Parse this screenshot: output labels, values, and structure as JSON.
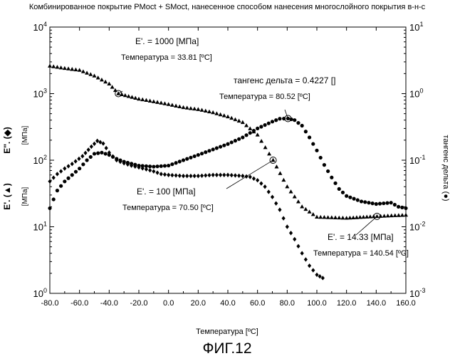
{
  "chart_data": {
    "type": "scatter",
    "title": "Комбинированное покрытие PMoct + SMoct, нанесенное способом нанесения многослойного покрытия в-н-с",
    "xlabel": "Температура [ºC]",
    "ylabel_left_top": "E''. (◆)",
    "ylabel_left_top_unit": "[МПа]",
    "ylabel_left_bottom": "E'. (▲)",
    "ylabel_left_bottom_unit": "[МПа]",
    "ylabel_right": "тангенс дельта (●)",
    "xlim": [
      -80,
      160
    ],
    "x_ticks": [
      -80,
      -60,
      -40,
      -20,
      0,
      20,
      40,
      60,
      80,
      100,
      120,
      140,
      160
    ],
    "x_tick_labels": [
      "-80.0",
      "-60.0",
      "-40.0",
      "-20.0",
      "0.0",
      "20.0",
      "40.0",
      "60.0",
      "80.0",
      "100.0",
      "120.0",
      "140.0",
      "160.0"
    ],
    "ylim_left": [
      1,
      10000
    ],
    "ylim_right": [
      0.001,
      10
    ],
    "y_scale": "log",
    "left_ticks": [
      {
        "base": "10",
        "exp": "0",
        "value": 1
      },
      {
        "base": "10",
        "exp": "1",
        "value": 10
      },
      {
        "base": "10",
        "exp": "2",
        "value": 100
      },
      {
        "base": "10",
        "exp": "3",
        "value": 1000
      },
      {
        "base": "10",
        "exp": "4",
        "value": 10000
      }
    ],
    "right_ticks": [
      {
        "base": "10",
        "exp": "-3",
        "value": 0.001
      },
      {
        "base": "10",
        "exp": "-2",
        "value": 0.01
      },
      {
        "base": "10",
        "exp": "-1",
        "value": 0.1
      },
      {
        "base": "10",
        "exp": "0",
        "value": 1
      },
      {
        "base": "10",
        "exp": "1",
        "value": 10
      }
    ],
    "grid": false,
    "series": [
      {
        "name": "E'",
        "marker": "triangle",
        "axis": "left",
        "points": [
          [
            -80,
            2600
          ],
          [
            -70,
            2400
          ],
          [
            -60,
            2250
          ],
          [
            -50,
            1850
          ],
          [
            -40,
            1400
          ],
          [
            -33.81,
            1000
          ],
          [
            -20,
            830
          ],
          [
            -10,
            760
          ],
          [
            0,
            690
          ],
          [
            10,
            620
          ],
          [
            20,
            580
          ],
          [
            30,
            520
          ],
          [
            40,
            450
          ],
          [
            50,
            370
          ],
          [
            60,
            240
          ],
          [
            70.5,
            100
          ],
          [
            80,
            40
          ],
          [
            90,
            20
          ],
          [
            100,
            14
          ],
          [
            120,
            13.5
          ],
          [
            140.54,
            14.33
          ],
          [
            160,
            15
          ]
        ]
      },
      {
        "name": "E''",
        "marker": "diamond",
        "axis": "left",
        "points": [
          [
            -80,
            48
          ],
          [
            -75,
            62
          ],
          [
            -70,
            75
          ],
          [
            -65,
            88
          ],
          [
            -58,
            115
          ],
          [
            -52,
            160
          ],
          [
            -48,
            195
          ],
          [
            -44,
            178
          ],
          [
            -40,
            130
          ],
          [
            -35,
            100
          ],
          [
            -30,
            90
          ],
          [
            -25,
            83
          ],
          [
            -20,
            78
          ],
          [
            -15,
            73
          ],
          [
            -10,
            68
          ],
          [
            -5,
            62
          ],
          [
            0,
            60
          ],
          [
            10,
            58
          ],
          [
            20,
            58
          ],
          [
            30,
            60
          ],
          [
            40,
            60
          ],
          [
            50,
            58
          ],
          [
            55,
            56
          ],
          [
            60,
            50
          ],
          [
            65,
            40
          ],
          [
            70,
            28
          ],
          [
            75,
            18
          ],
          [
            80,
            10
          ],
          [
            85,
            6.5
          ],
          [
            90,
            4
          ],
          [
            95,
            2.6
          ],
          [
            100,
            1.9
          ],
          [
            104,
            1.7
          ]
        ]
      },
      {
        "name": "тангенс дельта",
        "marker": "circle",
        "axis": "right",
        "points": [
          [
            -80,
            0.019
          ],
          [
            -75,
            0.035
          ],
          [
            -70,
            0.048
          ],
          [
            -65,
            0.06
          ],
          [
            -60,
            0.075
          ],
          [
            -55,
            0.1
          ],
          [
            -50,
            0.125
          ],
          [
            -45,
            0.13
          ],
          [
            -40,
            0.12
          ],
          [
            -35,
            0.105
          ],
          [
            -30,
            0.095
          ],
          [
            -20,
            0.083
          ],
          [
            -10,
            0.08
          ],
          [
            0,
            0.083
          ],
          [
            10,
            0.1
          ],
          [
            20,
            0.12
          ],
          [
            30,
            0.145
          ],
          [
            40,
            0.175
          ],
          [
            50,
            0.22
          ],
          [
            60,
            0.3
          ],
          [
            70,
            0.38
          ],
          [
            75,
            0.42
          ],
          [
            80.52,
            0.4227
          ],
          [
            85,
            0.4
          ],
          [
            90,
            0.33
          ],
          [
            95,
            0.22
          ],
          [
            100,
            0.14
          ],
          [
            105,
            0.085
          ],
          [
            110,
            0.055
          ],
          [
            115,
            0.037
          ],
          [
            120,
            0.029
          ],
          [
            130,
            0.024
          ],
          [
            140,
            0.022
          ],
          [
            150,
            0.023
          ],
          [
            155,
            0.02
          ],
          [
            160,
            0.019
          ]
        ]
      }
    ],
    "annotations": [
      {
        "series": "E'",
        "x": -33.81,
        "y": 1000,
        "lines": [
          "E'. = 1000 [МПа]",
          "Температура = 33.81 [ºC]"
        ]
      },
      {
        "series": "тангенс дельта",
        "x": 80.52,
        "y": 0.4227,
        "lines": [
          "тангенс дельта = 0.4227 []",
          "Температура = 80.52 [ºC]"
        ]
      },
      {
        "series": "E'",
        "x": 70.5,
        "y": 100,
        "lines": [
          "E'. = 100 [МПа]",
          "Температура = 70.50 [ºC]"
        ]
      },
      {
        "series": "E'",
        "x": 140.54,
        "y": 14.33,
        "lines": [
          "E'. = 14.33 [МПа]",
          "Температура = 140.54 [ºC]"
        ]
      }
    ],
    "figure_caption": "ФИГ.12"
  }
}
